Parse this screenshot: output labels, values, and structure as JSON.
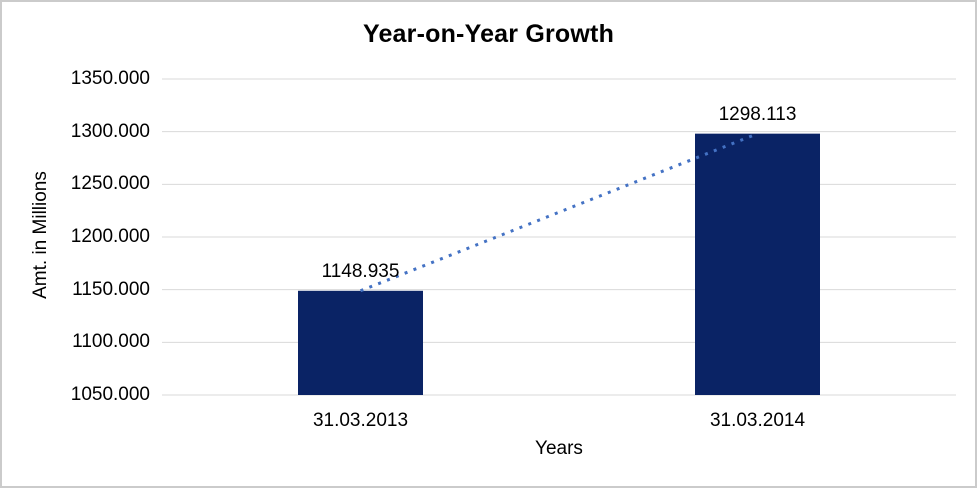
{
  "chart_data": {
    "type": "bar",
    "title": "Year-on-Year Growth",
    "xlabel": "Years",
    "ylabel": "Amt. in Millions",
    "categories": [
      "31.03.2013",
      "31.03.2014"
    ],
    "values": [
      1148.935,
      1298.113
    ],
    "data_labels": [
      "1148.935",
      "1298.113"
    ],
    "yticks": [
      "1350.000",
      "1300.000",
      "1250.000",
      "1200.000",
      "1150.000",
      "1100.000",
      "1050.000"
    ],
    "ylim": [
      1050,
      1350
    ],
    "grid": true,
    "legend": false,
    "trendline": true,
    "colors": {
      "bar": "#0a2365",
      "trendline": "#4472c4",
      "gridline": "#d9d9d9",
      "text": "#000000",
      "border": "#cbcbcb",
      "background": "#ffffff"
    }
  }
}
